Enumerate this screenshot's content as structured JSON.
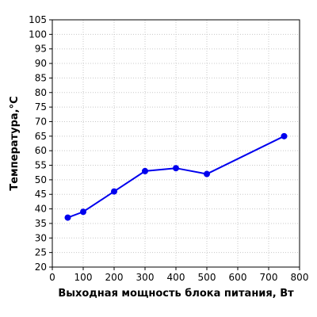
{
  "chart_data": {
    "type": "line",
    "title": "",
    "xlabel": "Выходная мощность блока питания, Вт",
    "ylabel": "Температура,°С",
    "xlim": [
      0,
      800
    ],
    "ylim": [
      20,
      105
    ],
    "x_ticks": [
      0,
      100,
      200,
      300,
      400,
      500,
      600,
      700,
      800
    ],
    "y_ticks": [
      20,
      25,
      30,
      35,
      40,
      45,
      50,
      55,
      60,
      65,
      70,
      75,
      80,
      85,
      90,
      95,
      100,
      105
    ],
    "grid": true,
    "legend": "none",
    "series": [
      {
        "color": "#0000ee",
        "x": [
          50,
          100,
          200,
          300,
          400,
          500,
          750
        ],
        "y": [
          37,
          39,
          46,
          53,
          54,
          52,
          65
        ]
      }
    ]
  }
}
